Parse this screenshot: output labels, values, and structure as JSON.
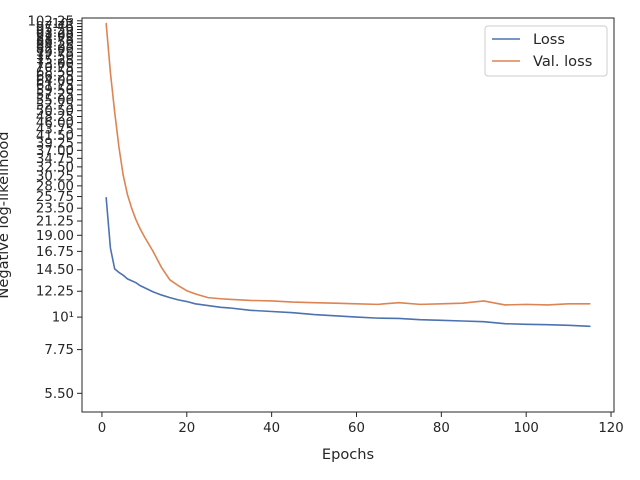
{
  "chart_data": {
    "type": "line",
    "title": "",
    "xlabel": "Epochs",
    "ylabel": "Negative log-likelihood",
    "yscale": "log",
    "xlim": [
      -4.7,
      120.7
    ],
    "ylim": [
      4.75,
      104.5
    ],
    "grid": false,
    "legend_position": "top-right",
    "x_ticks": [
      0,
      20,
      40,
      60,
      80,
      100,
      120
    ],
    "x_tick_labels": [
      "0",
      "20",
      "40",
      "60",
      "80",
      "100",
      "120"
    ],
    "y_ticks": [
      5.5,
      7.75,
      10,
      12.25,
      14.5,
      16.75,
      19,
      21.25,
      23.5,
      25.75,
      28,
      30.25,
      32.5,
      34.75,
      37,
      39.25,
      41.5,
      43.75,
      46,
      48.25,
      50.5,
      52.75,
      55,
      57.25,
      59.5,
      61.75,
      64,
      66.25,
      68.5,
      70.75,
      73,
      75.25,
      77.5,
      79.75,
      82,
      84.25,
      86.5,
      88.75,
      91,
      93.25,
      95.5,
      97.75,
      100,
      102.25
    ],
    "y_tick_labels": [
      "5.50",
      "7.75",
      "10¹",
      "12.25",
      "14.50",
      "16.75",
      "19.00",
      "21.25",
      "23.50",
      "25.75",
      "28.00",
      "30.25",
      "32.50",
      "34.75",
      "37.00",
      "39.25",
      "41.50",
      "43.75",
      "46.00",
      "48.25",
      "50.50",
      "52.75",
      "55.00",
      "57.25",
      "59.50",
      "61.75",
      "64.00",
      "66.25",
      "68.50",
      "70.75",
      "73.00",
      "75.25",
      "77.50",
      "79.75",
      "82.00",
      "84.25",
      "86.50",
      "88.75",
      "91.00",
      "93.25",
      "95.50",
      "97.75",
      "10²",
      "102.25"
    ],
    "series": [
      {
        "name": "Loss",
        "color": "#4c72b0",
        "x": [
          1,
          2,
          3,
          4,
          5,
          6,
          7,
          8,
          9,
          10,
          12,
          14,
          16,
          18,
          20,
          22,
          25,
          28,
          30,
          35,
          40,
          45,
          50,
          55,
          60,
          65,
          70,
          75,
          80,
          85,
          90,
          95,
          100,
          105,
          110,
          115
        ],
        "y": [
          25.5,
          17.2,
          14.6,
          14.2,
          13.9,
          13.5,
          13.3,
          13.1,
          12.8,
          12.6,
          12.2,
          11.9,
          11.65,
          11.45,
          11.3,
          11.1,
          10.95,
          10.8,
          10.75,
          10.55,
          10.45,
          10.35,
          10.2,
          10.1,
          10.0,
          9.92,
          9.9,
          9.8,
          9.75,
          9.7,
          9.65,
          9.5,
          9.45,
          9.42,
          9.38,
          9.3
        ]
      },
      {
        "name": "Val. loss",
        "color": "#dd8452",
        "x": [
          1,
          2,
          3,
          4,
          5,
          6,
          7,
          8,
          9,
          10,
          12,
          14,
          16,
          18,
          20,
          22,
          25,
          28,
          30,
          35,
          40,
          45,
          50,
          55,
          60,
          65,
          70,
          75,
          80,
          85,
          90,
          95,
          100,
          105,
          110,
          115
        ],
        "y": [
          100,
          68,
          50,
          38,
          30.5,
          26.2,
          23.5,
          21.5,
          20.0,
          18.8,
          16.8,
          14.8,
          13.4,
          12.8,
          12.3,
          12.0,
          11.65,
          11.55,
          11.5,
          11.4,
          11.35,
          11.25,
          11.2,
          11.15,
          11.1,
          11.05,
          11.2,
          11.05,
          11.1,
          11.15,
          11.35,
          11.0,
          11.05,
          11.0,
          11.1,
          11.1
        ]
      }
    ]
  }
}
